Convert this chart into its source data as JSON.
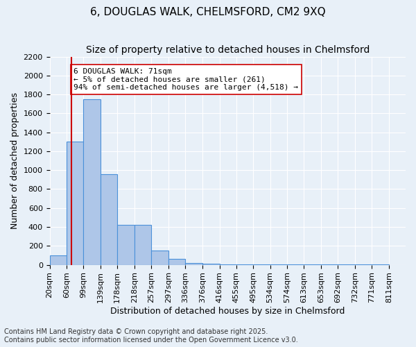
{
  "title1": "6, DOUGLAS WALK, CHELMSFORD, CM2 9XQ",
  "title2": "Size of property relative to detached houses in Chelmsford",
  "xlabel": "Distribution of detached houses by size in Chelmsford",
  "ylabel": "Number of detached properties",
  "bin_labels": [
    "20sqm",
    "60sqm",
    "99sqm",
    "139sqm",
    "178sqm",
    "218sqm",
    "257sqm",
    "297sqm",
    "336sqm",
    "376sqm",
    "416sqm",
    "455sqm",
    "495sqm",
    "534sqm",
    "574sqm",
    "613sqm",
    "653sqm",
    "692sqm",
    "732sqm",
    "771sqm",
    "811sqm"
  ],
  "bin_edges": [
    20,
    60,
    99,
    139,
    178,
    218,
    257,
    297,
    336,
    376,
    416,
    455,
    495,
    534,
    574,
    613,
    653,
    692,
    732,
    771,
    811
  ],
  "bar_heights": [
    100,
    1300,
    1750,
    960,
    420,
    420,
    150,
    60,
    20,
    10,
    5,
    5,
    3,
    2,
    2,
    1,
    1,
    1,
    1,
    1
  ],
  "bar_color": "#aec6e8",
  "bar_edge_color": "#4a90d9",
  "property_size": 71,
  "vline_color": "#cc0000",
  "annotation_text": "6 DOUGLAS WALK: 71sqm\n← 5% of detached houses are smaller (261)\n94% of semi-detached houses are larger (4,518) →",
  "annotation_box_color": "#ffffff",
  "annotation_box_edge": "#cc0000",
  "ylim": [
    0,
    2200
  ],
  "yticks": [
    0,
    200,
    400,
    600,
    800,
    1000,
    1200,
    1400,
    1600,
    1800,
    2000,
    2200
  ],
  "background_color": "#e8f0f8",
  "footer1": "Contains HM Land Registry data © Crown copyright and database right 2025.",
  "footer2": "Contains public sector information licensed under the Open Government Licence v3.0.",
  "grid_color": "#ffffff",
  "title1_fontsize": 11,
  "title2_fontsize": 10,
  "xlabel_fontsize": 9,
  "ylabel_fontsize": 9,
  "tick_fontsize": 8,
  "annotation_fontsize": 8,
  "footer_fontsize": 7
}
